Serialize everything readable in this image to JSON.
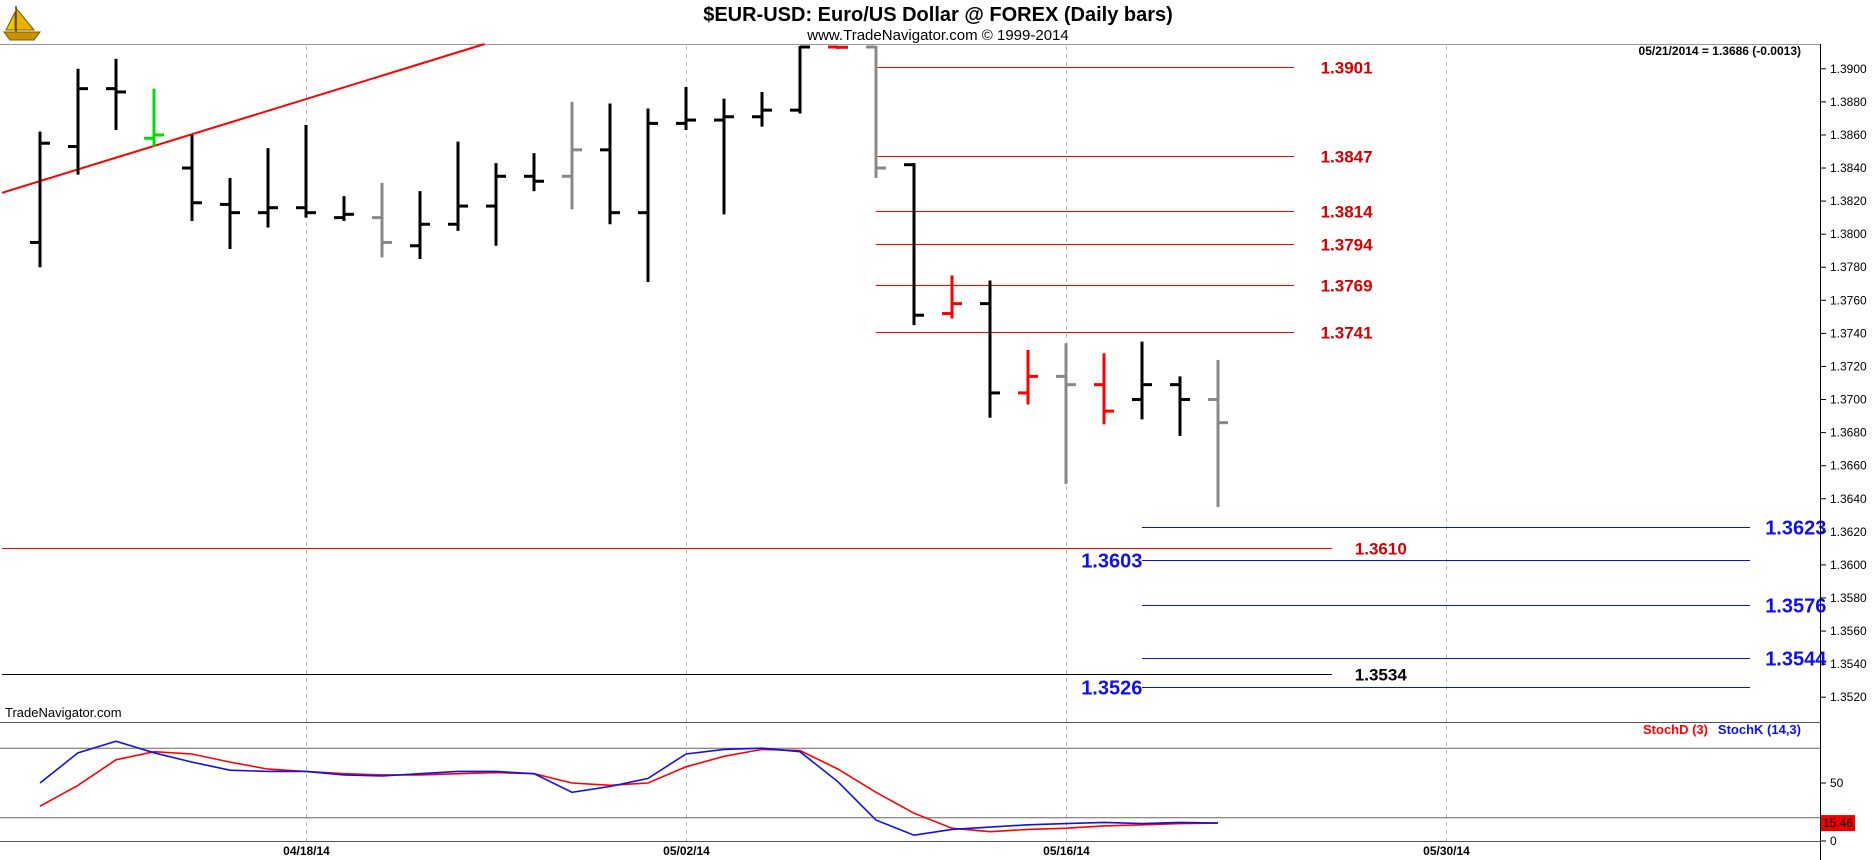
{
  "title": "$EUR-USD:  Euro/US Dollar @ FOREX  (Daily bars)",
  "subtitle": "www.TradeNavigator.com © 1999-2014",
  "info": "05/21/2014 = 1.3686 (-0.0013)",
  "brand": "TradeNavigator.com",
  "logo_icon": "sailing-ship-logo-icon",
  "colors": {
    "red": "#ff0000",
    "darkred": "#d40000",
    "blue": "#1010ee",
    "gray": "#888888",
    "black": "#000000",
    "green": "#00dd00"
  },
  "chart_data": [
    {
      "type": "ohlc",
      "y_axis": {
        "min": 1.3505,
        "max": 1.3915,
        "ticks": [
          "1.3520",
          "1.3540",
          "1.3560",
          "1.3580",
          "1.3600",
          "1.3620",
          "1.3640",
          "1.3660",
          "1.3680",
          "1.3700",
          "1.3720",
          "1.3740",
          "1.3760",
          "1.3780",
          "1.3800",
          "1.3820",
          "1.3840",
          "1.3860",
          "1.3880",
          "1.3900"
        ]
      },
      "x_axis": {
        "labels": [
          {
            "label": "04/18/14",
            "index": 7
          },
          {
            "label": "05/02/14",
            "index": 17
          },
          {
            "label": "05/16/14",
            "index": 27
          },
          {
            "label": "05/30/14",
            "index": 37
          }
        ]
      },
      "bars": [
        {
          "o": 1.3795,
          "h": 1.3862,
          "l": 1.378,
          "c": 1.3855,
          "color": "black"
        },
        {
          "o": 1.3853,
          "h": 1.39,
          "l": 1.3836,
          "c": 1.3888,
          "color": "black"
        },
        {
          "o": 1.3888,
          "h": 1.3906,
          "l": 1.3863,
          "c": 1.3886,
          "color": "black"
        },
        {
          "o": 1.3858,
          "h": 1.3888,
          "l": 1.3853,
          "c": 1.386,
          "color": "green"
        },
        {
          "o": 1.384,
          "h": 1.386,
          "l": 1.3808,
          "c": 1.3819,
          "color": "black"
        },
        {
          "o": 1.3818,
          "h": 1.3834,
          "l": 1.3791,
          "c": 1.3813,
          "color": "black"
        },
        {
          "o": 1.3813,
          "h": 1.3852,
          "l": 1.3804,
          "c": 1.3816,
          "color": "black"
        },
        {
          "o": 1.3816,
          "h": 1.3866,
          "l": 1.381,
          "c": 1.3813,
          "color": "black"
        },
        {
          "o": 1.381,
          "h": 1.3823,
          "l": 1.3808,
          "c": 1.3812,
          "color": "black"
        },
        {
          "o": 1.381,
          "h": 1.3831,
          "l": 1.3786,
          "c": 1.3795,
          "color": "gray"
        },
        {
          "o": 1.3793,
          "h": 1.3826,
          "l": 1.3785,
          "c": 1.3806,
          "color": "black"
        },
        {
          "o": 1.3806,
          "h": 1.3856,
          "l": 1.3802,
          "c": 1.3817,
          "color": "black"
        },
        {
          "o": 1.3817,
          "h": 1.3843,
          "l": 1.3793,
          "c": 1.3835,
          "color": "black"
        },
        {
          "o": 1.3835,
          "h": 1.3849,
          "l": 1.3826,
          "c": 1.3832,
          "color": "black"
        },
        {
          "o": 1.3835,
          "h": 1.388,
          "l": 1.3815,
          "c": 1.3851,
          "color": "gray"
        },
        {
          "o": 1.3851,
          "h": 1.3879,
          "l": 1.3806,
          "c": 1.3813,
          "color": "black"
        },
        {
          "o": 1.3813,
          "h": 1.3876,
          "l": 1.3771,
          "c": 1.3867,
          "color": "black"
        },
        {
          "o": 1.3867,
          "h": 1.3889,
          "l": 1.3863,
          "c": 1.3869,
          "color": "black"
        },
        {
          "o": 1.3869,
          "h": 1.3882,
          "l": 1.3812,
          "c": 1.3871,
          "color": "black"
        },
        {
          "o": 1.3871,
          "h": 1.3886,
          "l": 1.3865,
          "c": 1.3875,
          "color": "black"
        },
        {
          "o": 1.3875,
          "h": 1.3915,
          "l": 1.3873,
          "c": 1.3915,
          "color": "black"
        },
        {
          "o": 1.3918,
          "h": 1.392,
          "l": 1.3912,
          "c": 1.3913,
          "color": "red"
        },
        {
          "o": 1.3914,
          "h": 1.392,
          "l": 1.3834,
          "c": 1.384,
          "color": "gray"
        },
        {
          "o": 1.3842,
          "h": 1.3843,
          "l": 1.3745,
          "c": 1.3751,
          "color": "black"
        },
        {
          "o": 1.3752,
          "h": 1.3775,
          "l": 1.3749,
          "c": 1.3758,
          "color": "red"
        },
        {
          "o": 1.3758,
          "h": 1.3772,
          "l": 1.3689,
          "c": 1.3704,
          "color": "black"
        },
        {
          "o": 1.3704,
          "h": 1.373,
          "l": 1.3697,
          "c": 1.3714,
          "color": "red"
        },
        {
          "o": 1.3714,
          "h": 1.3734,
          "l": 1.3649,
          "c": 1.3709,
          "color": "gray"
        },
        {
          "o": 1.3709,
          "h": 1.3728,
          "l": 1.3685,
          "c": 1.3693,
          "color": "red"
        },
        {
          "o": 1.37,
          "h": 1.3735,
          "l": 1.3688,
          "c": 1.3709,
          "color": "black"
        },
        {
          "o": 1.3709,
          "h": 1.3714,
          "l": 1.3678,
          "c": 1.37,
          "color": "black"
        },
        {
          "o": 1.37,
          "h": 1.3724,
          "l": 1.3635,
          "c": 1.3686,
          "color": "gray"
        }
      ],
      "trendline": {
        "from": {
          "index": -1.0,
          "price": 1.3825
        },
        "to": {
          "index": 11.7,
          "price": 1.3915
        },
        "color": "red"
      },
      "levels": [
        {
          "value": 1.3901,
          "label": "1.3901",
          "from": 22,
          "to": 33,
          "label_at": 33.7,
          "color": "darkred",
          "style": "red"
        },
        {
          "value": 1.3847,
          "label": "1.3847",
          "from": 22,
          "to": 33,
          "label_at": 33.7,
          "color": "darkred",
          "style": "red"
        },
        {
          "value": 1.3814,
          "label": "1.3814",
          "from": 22,
          "to": 33,
          "label_at": 33.7,
          "color": "darkred",
          "style": "red"
        },
        {
          "value": 1.3794,
          "label": "1.3794",
          "from": 22,
          "to": 33,
          "label_at": 33.7,
          "color": "darkred",
          "style": "red"
        },
        {
          "value": 1.3769,
          "label": "1.3769",
          "from": 22,
          "to": 33,
          "label_at": 33.7,
          "color": "darkred",
          "style": "red"
        },
        {
          "value": 1.3741,
          "label": "1.3741",
          "from": 22,
          "to": 33,
          "label_at": 33.7,
          "color": "darkred",
          "style": "red"
        },
        {
          "value": 1.361,
          "label": "1.3610",
          "from": -1.0,
          "to": 34,
          "label_at": 34.6,
          "color": "darkred",
          "style": "red"
        },
        {
          "value": 1.3534,
          "label": "1.3534",
          "from": -1.0,
          "to": 34,
          "label_at": 34.6,
          "color": "black",
          "style": "black"
        },
        {
          "value": 1.3623,
          "label": "1.3623",
          "from": 29,
          "to": 45,
          "label_at": 45.4,
          "color": "blue",
          "style": "blue"
        },
        {
          "value": 1.3603,
          "label": "1.3603",
          "from": 29,
          "to": 45,
          "label_at": 27.4,
          "color": "blue",
          "style": "blue"
        },
        {
          "value": 1.3576,
          "label": "1.3576",
          "from": 29,
          "to": 45,
          "label_at": 45.4,
          "color": "blue",
          "style": "blue"
        },
        {
          "value": 1.3544,
          "label": "1.3544",
          "from": 29,
          "to": 45,
          "label_at": 45.4,
          "color": "blue",
          "style": "blue"
        },
        {
          "value": 1.3526,
          "label": "1.3526",
          "from": 29,
          "to": 45,
          "label_at": 27.4,
          "color": "blue",
          "style": "blue"
        }
      ]
    },
    {
      "type": "line",
      "title": "",
      "y_axis": {
        "min": 0,
        "max": 100,
        "ticks": [
          "0",
          "50"
        ]
      },
      "reference_lines": [
        80,
        20
      ],
      "last_value": "15.46",
      "series": [
        {
          "name": "StochD (3)",
          "color": "red",
          "values": [
            30,
            48,
            70,
            77,
            75,
            68,
            62,
            60,
            58,
            57,
            57,
            58,
            59,
            58,
            50,
            48,
            50,
            64,
            73,
            79,
            78,
            62,
            42,
            24,
            11,
            8,
            10,
            11,
            13,
            14,
            15,
            15.46
          ]
        },
        {
          "name": "StochK (14,3)",
          "color": "blue",
          "values": [
            50,
            76,
            86,
            76,
            68,
            61,
            60,
            60,
            57,
            56,
            58,
            60,
            60,
            58,
            42,
            47,
            54,
            75,
            79,
            80,
            77,
            51,
            18,
            5,
            10,
            12,
            14,
            15,
            16,
            15,
            16,
            15.46
          ]
        }
      ]
    }
  ]
}
